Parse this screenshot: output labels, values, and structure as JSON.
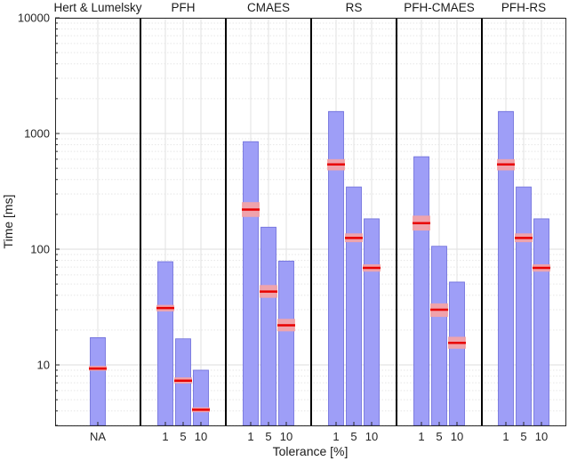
{
  "chart_data": {
    "type": "bar",
    "subtype": "floating-range-with-median",
    "ylabel": "Time [ms]",
    "xlabel": "Tolerance [%]",
    "yscale": "log",
    "ylim": [
      3,
      10000
    ],
    "y_ticks": [
      10,
      100,
      1000,
      10000
    ],
    "y_tick_labels": [
      "10",
      "100",
      "1000",
      "10000"
    ],
    "grid": true,
    "colors": {
      "bar_fill": "#9e9ef7",
      "bar_edge": "#6b6bd9",
      "median_line": "#e80000",
      "median_band": "#f7a3a3",
      "separator": "#000000",
      "grid": "#dcdcdc"
    },
    "groups": [
      {
        "title": "Hert & Lumelsky",
        "tolerances": [
          "NA"
        ],
        "bars": [
          {
            "tolerance": "NA",
            "min": 3,
            "max": 17.2,
            "median": 9.3,
            "band_low": 8.9,
            "band_high": 9.8
          }
        ]
      },
      {
        "title": "PFH",
        "tolerances": [
          "1",
          "5",
          "10"
        ],
        "bars": [
          {
            "tolerance": "1",
            "min": 3,
            "max": 78,
            "median": 31,
            "band_low": 29,
            "band_high": 33
          },
          {
            "tolerance": "5",
            "min": 3,
            "max": 16.8,
            "median": 7.3,
            "band_low": 6.9,
            "band_high": 7.8
          },
          {
            "tolerance": "10",
            "min": 3,
            "max": 9.0,
            "median": 4.1,
            "band_low": 3.9,
            "band_high": 4.3
          }
        ]
      },
      {
        "title": "CMAES",
        "tolerances": [
          "1",
          "5",
          "10"
        ],
        "bars": [
          {
            "tolerance": "1",
            "min": 3,
            "max": 850,
            "median": 220,
            "band_low": 190,
            "band_high": 255
          },
          {
            "tolerance": "5",
            "min": 3,
            "max": 155,
            "median": 43,
            "band_low": 38,
            "band_high": 49
          },
          {
            "tolerance": "10",
            "min": 3,
            "max": 79,
            "median": 22,
            "band_low": 19.5,
            "band_high": 25
          }
        ]
      },
      {
        "title": "RS",
        "tolerances": [
          "1",
          "5",
          "10"
        ],
        "bars": [
          {
            "tolerance": "1",
            "min": 3,
            "max": 1550,
            "median": 540,
            "band_low": 480,
            "band_high": 600
          },
          {
            "tolerance": "5",
            "min": 3,
            "max": 345,
            "median": 125,
            "band_low": 115,
            "band_high": 137
          },
          {
            "tolerance": "10",
            "min": 3,
            "max": 183,
            "median": 69,
            "band_low": 64,
            "band_high": 74
          }
        ]
      },
      {
        "title": "PFH-CMAES",
        "tolerances": [
          "1",
          "5",
          "10"
        ],
        "bars": [
          {
            "tolerance": "1",
            "min": 3,
            "max": 630,
            "median": 168,
            "band_low": 145,
            "band_high": 195
          },
          {
            "tolerance": "5",
            "min": 3,
            "max": 106,
            "median": 30,
            "band_low": 26,
            "band_high": 34
          },
          {
            "tolerance": "10",
            "min": 3,
            "max": 52,
            "median": 15.5,
            "band_low": 13.8,
            "band_high": 17.5
          }
        ]
      },
      {
        "title": "PFH-RS",
        "tolerances": [
          "1",
          "5",
          "10"
        ],
        "bars": [
          {
            "tolerance": "1",
            "min": 3,
            "max": 1550,
            "median": 540,
            "band_low": 480,
            "band_high": 600
          },
          {
            "tolerance": "5",
            "min": 3,
            "max": 345,
            "median": 125,
            "band_low": 115,
            "band_high": 137
          },
          {
            "tolerance": "10",
            "min": 3,
            "max": 183,
            "median": 69,
            "band_low": 64,
            "band_high": 74
          }
        ]
      }
    ]
  }
}
